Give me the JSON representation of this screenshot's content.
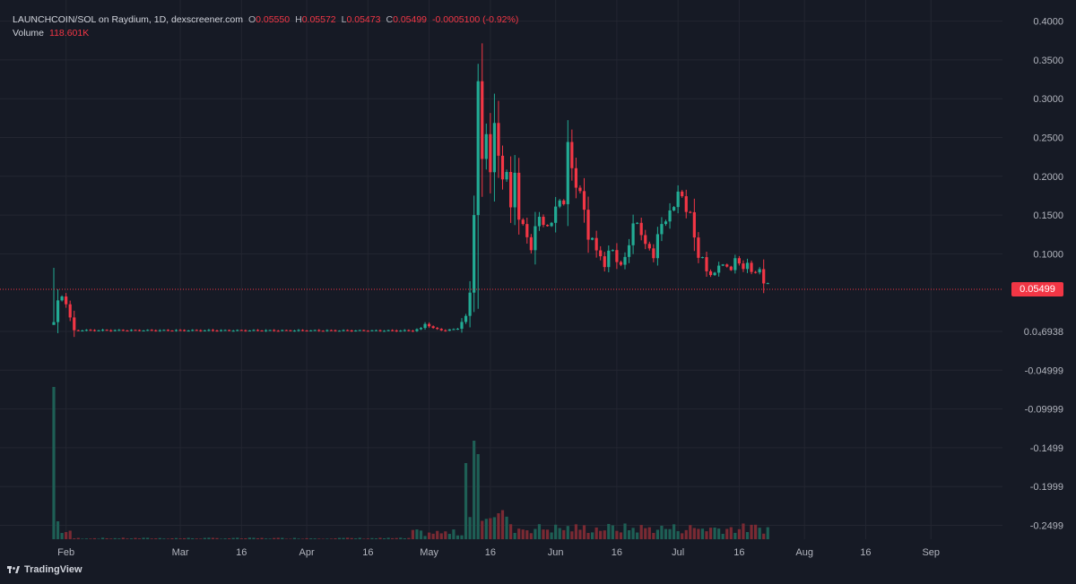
{
  "header": {
    "title": "LAUNCHCOIN/SOL on Raydium, 1D, dexscreener.com",
    "o_label": "O",
    "o_value": "0.05550",
    "h_label": "H",
    "h_value": "0.05572",
    "l_label": "L",
    "l_value": "0.05473",
    "c_label": "C",
    "c_value": "0.05499",
    "change": "-0.0005100 (-0.92%)",
    "volume_label": "Volume",
    "volume_value": "118.601K"
  },
  "current_price_label": "0.05499",
  "brand": {
    "name": "TradingView",
    "icon": "tradingview-logo-icon"
  },
  "colors": {
    "background": "#161a25",
    "up": "#22ab94",
    "down": "#f23645",
    "grid": "#232631",
    "text": "#b2b5be"
  },
  "chart_data": {
    "type": "candlestick",
    "title": "LAUNCHCOIN/SOL on Raydium, 1D, dexscreener.com",
    "timeframe": "1D",
    "ylim": [
      -0.27,
      0.41
    ],
    "y_ticks": [
      {
        "value": 0.4,
        "label": "0.4000"
      },
      {
        "value": 0.35,
        "label": "0.3500"
      },
      {
        "value": 0.3,
        "label": "0.3000"
      },
      {
        "value": 0.25,
        "label": "0.2500"
      },
      {
        "value": 0.2,
        "label": "0.2000"
      },
      {
        "value": 0.15,
        "label": "0.1500"
      },
      {
        "value": 0.1,
        "label": "0.1000"
      },
      {
        "value": 0.0,
        "label": "0.0₄6938"
      },
      {
        "value": -0.05,
        "label": "-0.04999"
      },
      {
        "value": -0.1,
        "label": "-0.09999"
      },
      {
        "value": -0.15,
        "label": "-0.1499"
      },
      {
        "value": -0.2,
        "label": "-0.1999"
      },
      {
        "value": -0.25,
        "label": "-0.2499"
      }
    ],
    "x_ticks": [
      {
        "day": 3,
        "label": "Feb"
      },
      {
        "day": 31,
        "label": "Mar"
      },
      {
        "day": 46,
        "label": "16"
      },
      {
        "day": 62,
        "label": "Apr"
      },
      {
        "day": 77,
        "label": "16"
      },
      {
        "day": 92,
        "label": "May"
      },
      {
        "day": 107,
        "label": "16"
      },
      {
        "day": 123,
        "label": "Jun"
      },
      {
        "day": 138,
        "label": "16"
      },
      {
        "day": 153,
        "label": "Jul"
      },
      {
        "day": 168,
        "label": "16"
      },
      {
        "day": 184,
        "label": "Aug"
      },
      {
        "day": 199,
        "label": "16"
      },
      {
        "day": 215,
        "label": "Sep"
      }
    ],
    "anchors": [
      [
        0,
        0.012
      ],
      [
        1,
        0.04
      ],
      [
        2,
        0.045
      ],
      [
        3,
        0.035
      ],
      [
        4,
        0.018
      ],
      [
        5,
        0.0015
      ],
      [
        88,
        0.001
      ],
      [
        90,
        0.004
      ],
      [
        91,
        0.01
      ],
      [
        93,
        0.004
      ],
      [
        96,
        0.001
      ],
      [
        99,
        0.004
      ],
      [
        101,
        0.02
      ],
      [
        102,
        0.05
      ],
      [
        103,
        0.15
      ],
      [
        104,
        0.32
      ],
      [
        105,
        0.22
      ],
      [
        106,
        0.26
      ],
      [
        107,
        0.2
      ],
      [
        108,
        0.27
      ],
      [
        110,
        0.19
      ],
      [
        111,
        0.21
      ],
      [
        112,
        0.16
      ],
      [
        113,
        0.2
      ],
      [
        114,
        0.15
      ],
      [
        116,
        0.12
      ],
      [
        117,
        0.11
      ],
      [
        119,
        0.15
      ],
      [
        121,
        0.13
      ],
      [
        123,
        0.16
      ],
      [
        125,
        0.17
      ],
      [
        126,
        0.24
      ],
      [
        127,
        0.21
      ],
      [
        128,
        0.19
      ],
      [
        130,
        0.16
      ],
      [
        131,
        0.12
      ],
      [
        133,
        0.11
      ],
      [
        135,
        0.08
      ],
      [
        136,
        0.11
      ],
      [
        138,
        0.09
      ],
      [
        140,
        0.09
      ],
      [
        142,
        0.14
      ],
      [
        144,
        0.13
      ],
      [
        145,
        0.11
      ],
      [
        147,
        0.1
      ],
      [
        149,
        0.14
      ],
      [
        151,
        0.15
      ],
      [
        153,
        0.18
      ],
      [
        154,
        0.17
      ],
      [
        156,
        0.15
      ],
      [
        157,
        0.12
      ],
      [
        158,
        0.1
      ],
      [
        160,
        0.08
      ],
      [
        162,
        0.07
      ],
      [
        163,
        0.09
      ],
      [
        165,
        0.08
      ],
      [
        167,
        0.09
      ],
      [
        169,
        0.085
      ],
      [
        171,
        0.08
      ],
      [
        173,
        0.075
      ],
      [
        175,
        0.06
      ]
    ],
    "volume_peaks": [
      {
        "day": 0,
        "value": 170
      },
      {
        "day": 101,
        "value": 85
      },
      {
        "day": 103,
        "value": 110
      },
      {
        "day": 104,
        "value": 1.0
      }
    ]
  }
}
